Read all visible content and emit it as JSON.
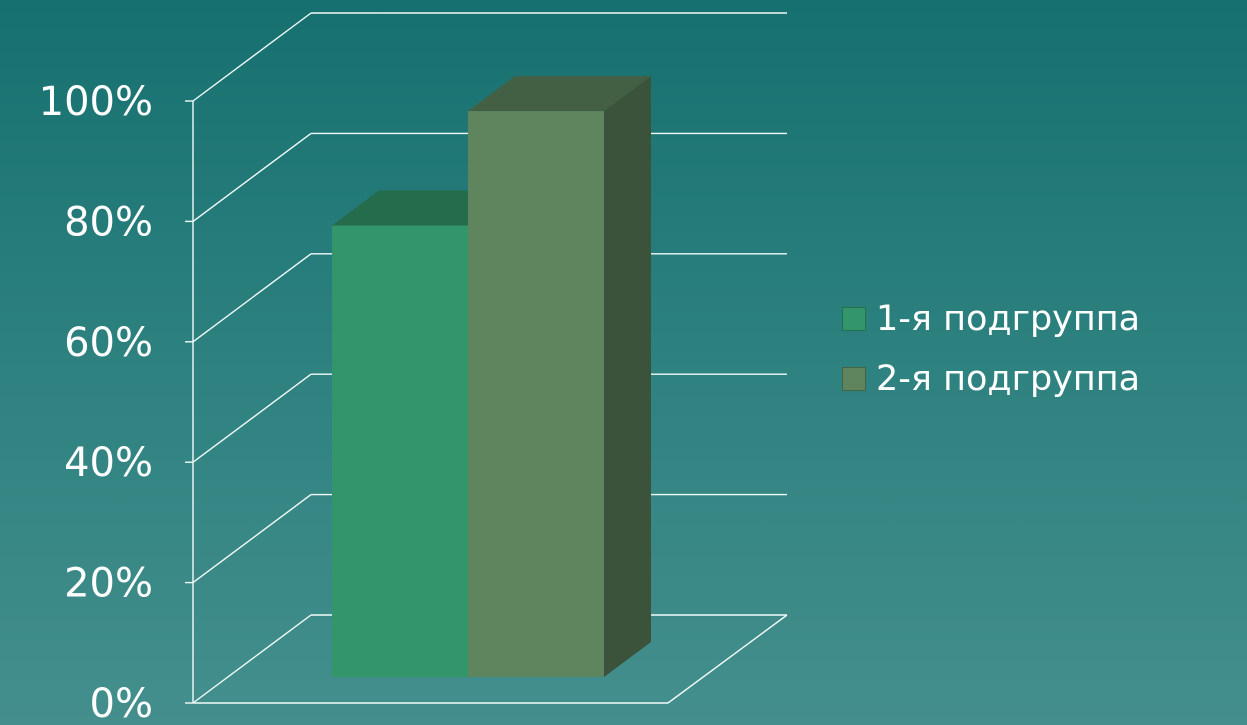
{
  "chart_data": {
    "type": "bar",
    "style": "3d-column",
    "categories": [
      ""
    ],
    "series": [
      {
        "name": "1-я подгруппа",
        "values": [
          75
        ],
        "color": "#33966a"
      },
      {
        "name": "2-я подгруппа",
        "values": [
          94
        ],
        "color": "#5f855f"
      }
    ],
    "title": "",
    "xlabel": "",
    "ylabel": "",
    "ylim": [
      0,
      100
    ],
    "yticks": [
      "0%",
      "20%",
      "40%",
      "60%",
      "80%",
      "100%"
    ],
    "grid": true,
    "legend": "right"
  },
  "legend": {
    "items": [
      {
        "label": "1-я подгруппа",
        "color": "#33966a"
      },
      {
        "label": "2-я подгруппа",
        "color": "#5f855f"
      }
    ]
  }
}
